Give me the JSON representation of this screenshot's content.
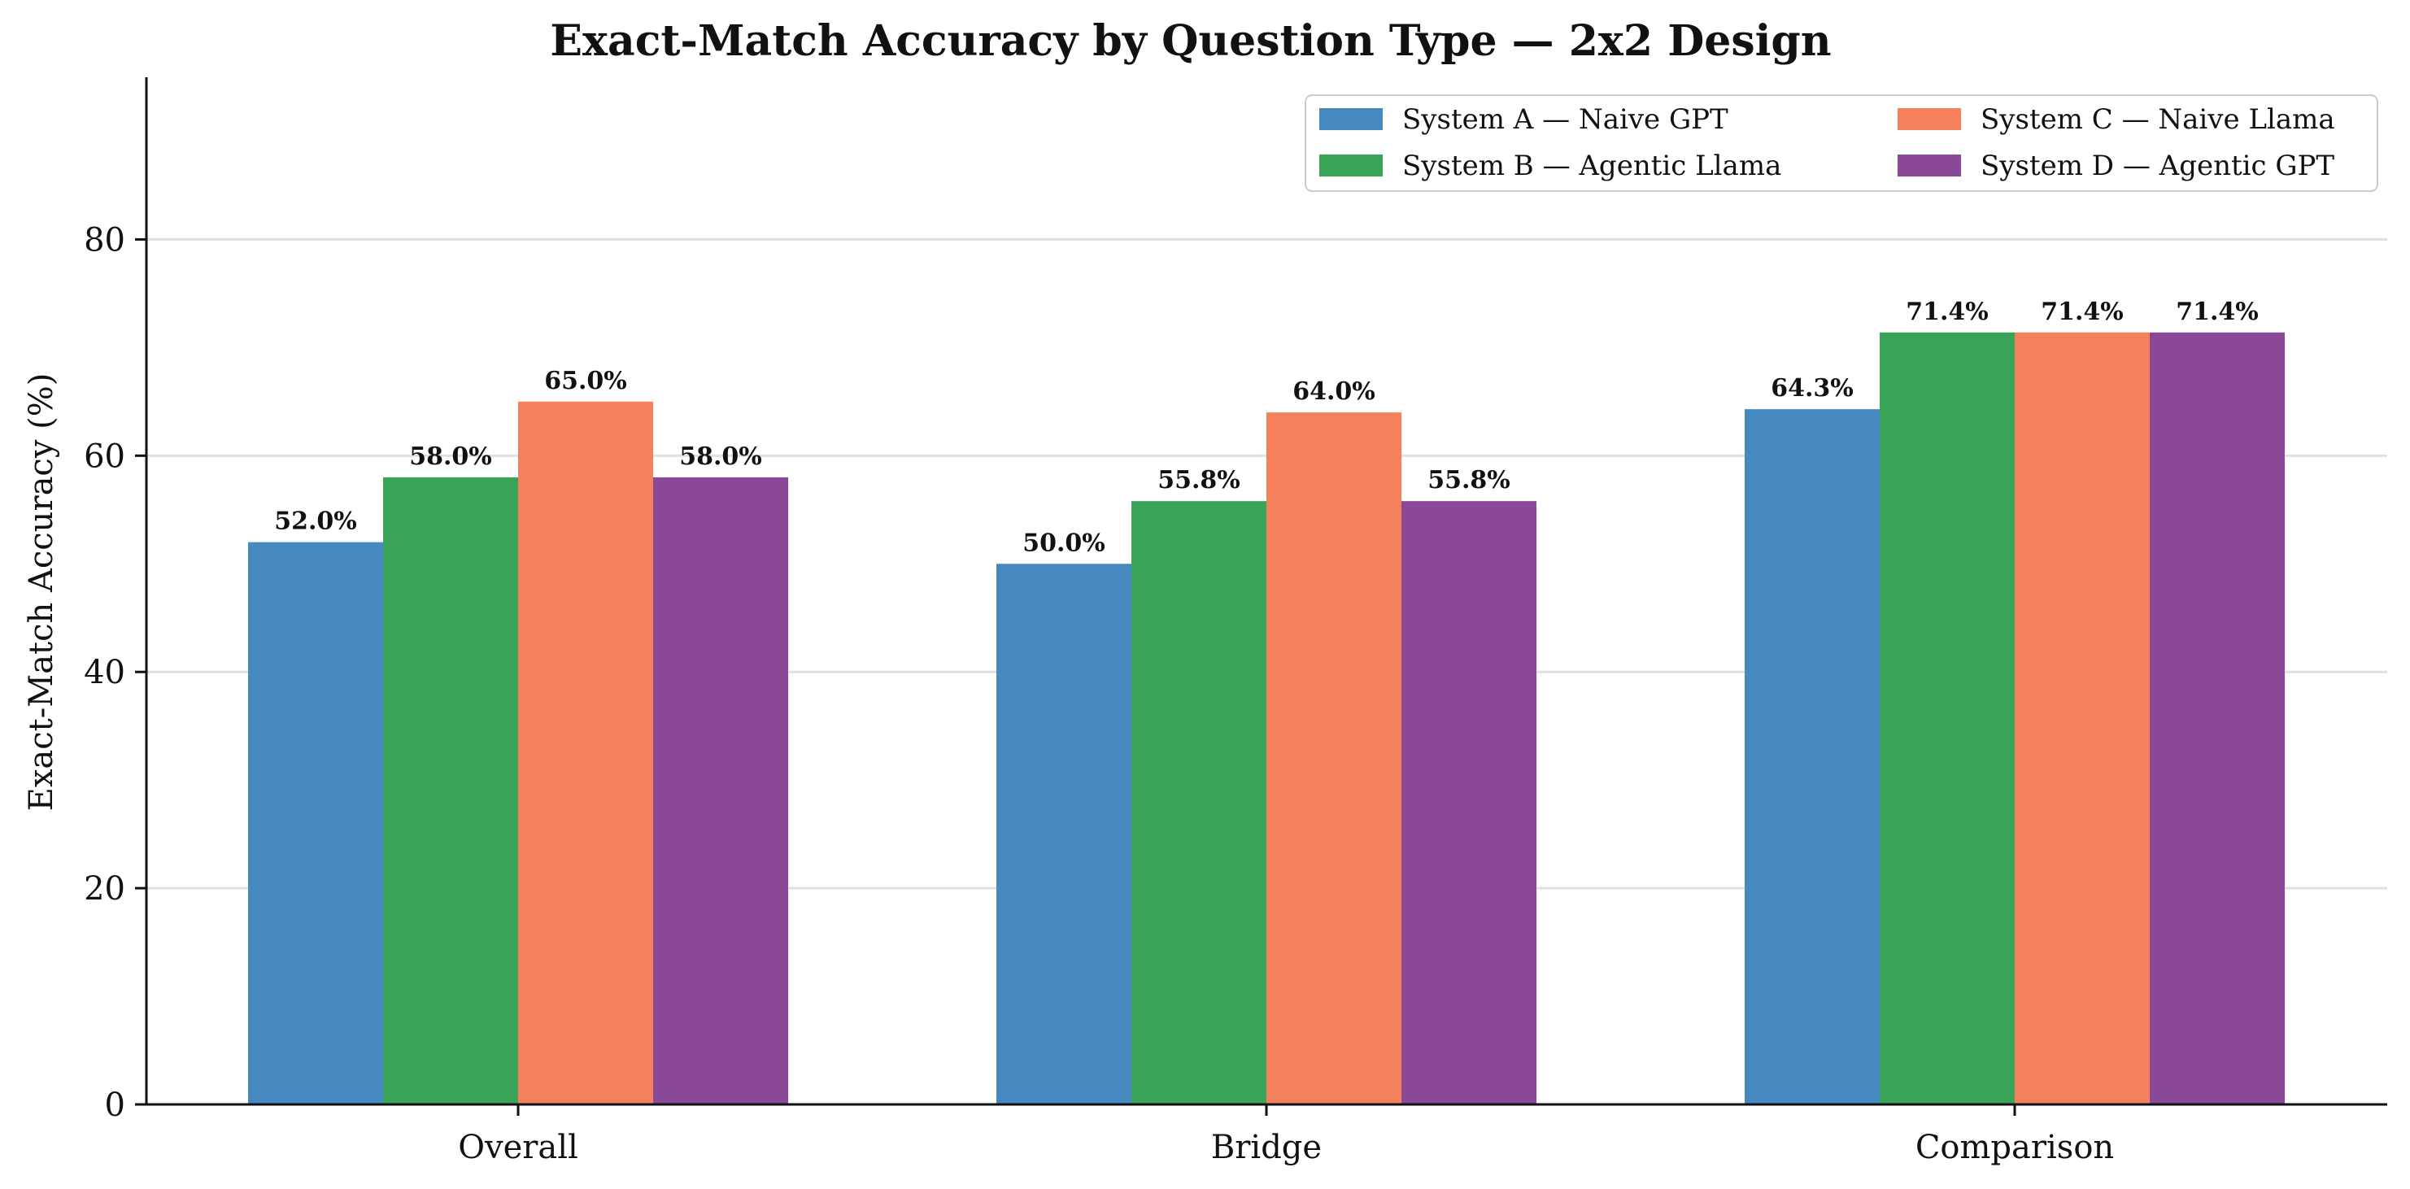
{
  "chart_data": {
    "type": "bar",
    "title": "Exact-Match Accuracy by Question Type — 2x2 Design",
    "xlabel": "",
    "ylabel": "Exact-Match Accuracy (%)",
    "ylim": [
      0,
      95
    ],
    "yticks": [
      0,
      20,
      40,
      60,
      80
    ],
    "grid": "y",
    "legend_position": "top-right",
    "categories": [
      "Overall",
      "Bridge",
      "Comparison"
    ],
    "series": [
      {
        "name": "System A — Naive GPT",
        "color": "#4689c0",
        "values": [
          52.0,
          50.0,
          64.3
        ],
        "labels": [
          "52.0%",
          "50.0%",
          "64.3%"
        ]
      },
      {
        "name": "System B — Agentic Llama",
        "color": "#39a457",
        "values": [
          58.0,
          55.8,
          71.4
        ],
        "labels": [
          "58.0%",
          "55.8%",
          "71.4%"
        ]
      },
      {
        "name": "System C — Naive Llama",
        "color": "#f4815c",
        "values": [
          65.0,
          64.0,
          71.4
        ],
        "labels": [
          "65.0%",
          "64.0%",
          "71.4%"
        ]
      },
      {
        "name": "System D — Agentic GPT",
        "color": "#8a4898",
        "values": [
          58.0,
          55.8,
          71.4
        ],
        "labels": [
          "58.0%",
          "55.8%",
          "71.4%"
        ]
      }
    ]
  }
}
